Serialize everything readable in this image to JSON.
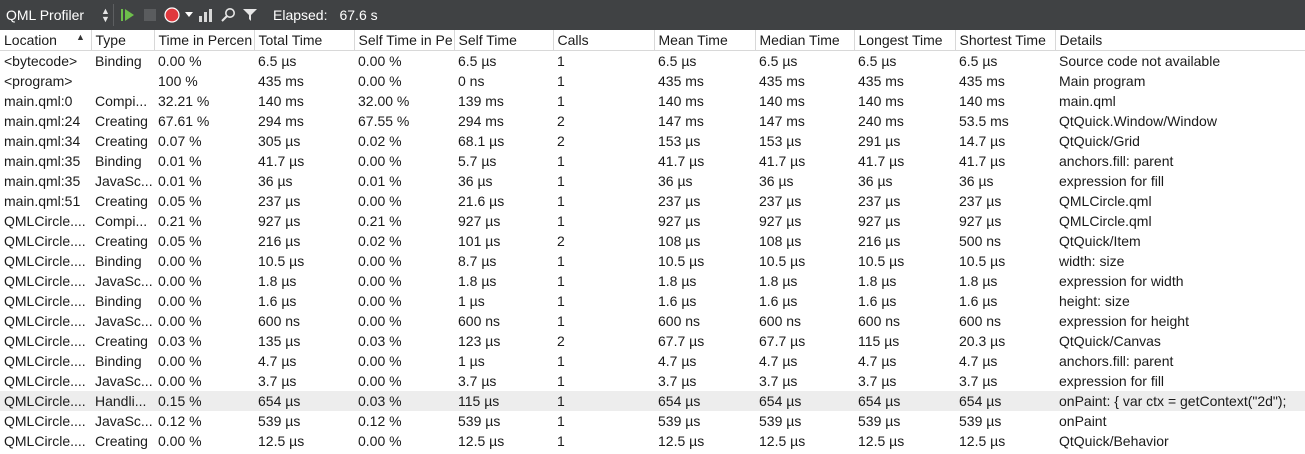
{
  "toolbar": {
    "view_label": "QML Profiler",
    "elapsed_label": "Elapsed:",
    "elapsed_value": "67.6 s",
    "icons": [
      "updown-arrows-icon",
      "run-profile-icon",
      "stop-icon",
      "record-icon",
      "dropdown-arrow-icon",
      "statistics-icon",
      "search-icon",
      "filter-icon"
    ],
    "colors": {
      "bg": "#404244",
      "record": "#e0393e",
      "run": "#6dbf4b"
    }
  },
  "table": {
    "columns": [
      "Location",
      "Type",
      "Time in Percen",
      "Total Time",
      "Self Time in Pe",
      "Self Time",
      "Calls",
      "Mean Time",
      "Median Time",
      "Longest Time",
      "Shortest Time",
      "Details"
    ],
    "rows": [
      [
        "<bytecode>",
        "Binding",
        "0.00 %",
        "6.5 µs",
        "0.00 %",
        "6.5 µs",
        "1",
        "6.5 µs",
        "6.5 µs",
        "6.5 µs",
        "6.5 µs",
        "Source code not available"
      ],
      [
        "<program>",
        "",
        "100 %",
        "435 ms",
        "0.00 %",
        "0 ns",
        "1",
        "435 ms",
        "435 ms",
        "435 ms",
        "435 ms",
        "Main program"
      ],
      [
        "main.qml:0",
        "Compi...",
        "32.21 %",
        "140 ms",
        "32.00 %",
        "139 ms",
        "1",
        "140 ms",
        "140 ms",
        "140 ms",
        "140 ms",
        "main.qml"
      ],
      [
        "main.qml:24",
        "Creating",
        "67.61 %",
        "294 ms",
        "67.55 %",
        "294 ms",
        "2",
        "147 ms",
        "147 ms",
        "240 ms",
        "53.5 ms",
        "QtQuick.Window/Window"
      ],
      [
        "main.qml:34",
        "Creating",
        "0.07 %",
        "305 µs",
        "0.02 %",
        "68.1 µs",
        "2",
        "153 µs",
        "153 µs",
        "291 µs",
        "14.7 µs",
        "QtQuick/Grid"
      ],
      [
        "main.qml:35",
        "Binding",
        "0.01 %",
        "41.7 µs",
        "0.00 %",
        "5.7 µs",
        "1",
        "41.7 µs",
        "41.7 µs",
        "41.7 µs",
        "41.7 µs",
        "anchors.fill: parent"
      ],
      [
        "main.qml:35",
        "JavaSc...",
        "0.01 %",
        "36 µs",
        "0.01 %",
        "36 µs",
        "1",
        "36 µs",
        "36 µs",
        "36 µs",
        "36 µs",
        "expression for fill"
      ],
      [
        "main.qml:51",
        "Creating",
        "0.05 %",
        "237 µs",
        "0.00 %",
        "21.6 µs",
        "1",
        "237 µs",
        "237 µs",
        "237 µs",
        "237 µs",
        "QMLCircle.qml"
      ],
      [
        "QMLCircle....",
        "Compi...",
        "0.21 %",
        "927 µs",
        "0.21 %",
        "927 µs",
        "1",
        "927 µs",
        "927 µs",
        "927 µs",
        "927 µs",
        "QMLCircle.qml"
      ],
      [
        "QMLCircle....",
        "Creating",
        "0.05 %",
        "216 µs",
        "0.02 %",
        "101 µs",
        "2",
        "108 µs",
        "108 µs",
        "216 µs",
        "500 ns",
        "QtQuick/Item"
      ],
      [
        "QMLCircle....",
        "Binding",
        "0.00 %",
        "10.5 µs",
        "0.00 %",
        "8.7 µs",
        "1",
        "10.5 µs",
        "10.5 µs",
        "10.5 µs",
        "10.5 µs",
        "width: size"
      ],
      [
        "QMLCircle....",
        "JavaSc...",
        "0.00 %",
        "1.8 µs",
        "0.00 %",
        "1.8 µs",
        "1",
        "1.8 µs",
        "1.8 µs",
        "1.8 µs",
        "1.8 µs",
        "expression for width"
      ],
      [
        "QMLCircle....",
        "Binding",
        "0.00 %",
        "1.6 µs",
        "0.00 %",
        "1 µs",
        "1",
        "1.6 µs",
        "1.6 µs",
        "1.6 µs",
        "1.6 µs",
        "height: size"
      ],
      [
        "QMLCircle....",
        "JavaSc...",
        "0.00 %",
        "600 ns",
        "0.00 %",
        "600 ns",
        "1",
        "600 ns",
        "600 ns",
        "600 ns",
        "600 ns",
        "expression for height"
      ],
      [
        "QMLCircle....",
        "Creating",
        "0.03 %",
        "135 µs",
        "0.03 %",
        "123 µs",
        "2",
        "67.7 µs",
        "67.7 µs",
        "115 µs",
        "20.3 µs",
        "QtQuick/Canvas"
      ],
      [
        "QMLCircle....",
        "Binding",
        "0.00 %",
        "4.7 µs",
        "0.00 %",
        "1 µs",
        "1",
        "4.7 µs",
        "4.7 µs",
        "4.7 µs",
        "4.7 µs",
        "anchors.fill: parent"
      ],
      [
        "QMLCircle....",
        "JavaSc...",
        "0.00 %",
        "3.7 µs",
        "0.00 %",
        "3.7 µs",
        "1",
        "3.7 µs",
        "3.7 µs",
        "3.7 µs",
        "3.7 µs",
        "expression for fill"
      ],
      [
        "QMLCircle....",
        "Handli...",
        "0.15 %",
        "654 µs",
        "0.03 %",
        "115 µs",
        "1",
        "654 µs",
        "654 µs",
        "654 µs",
        "654 µs",
        "onPaint: { var ctx = getContext(\"2d\");"
      ],
      [
        "QMLCircle....",
        "JavaSc...",
        "0.12 %",
        "539 µs",
        "0.12 %",
        "539 µs",
        "1",
        "539 µs",
        "539 µs",
        "539 µs",
        "539 µs",
        "onPaint"
      ],
      [
        "QMLCircle....",
        "Creating",
        "0.00 %",
        "12.5 µs",
        "0.00 %",
        "12.5 µs",
        "1",
        "12.5 µs",
        "12.5 µs",
        "12.5 µs",
        "12.5 µs",
        "QtQuick/Behavior"
      ]
    ],
    "selected_row": 17
  }
}
